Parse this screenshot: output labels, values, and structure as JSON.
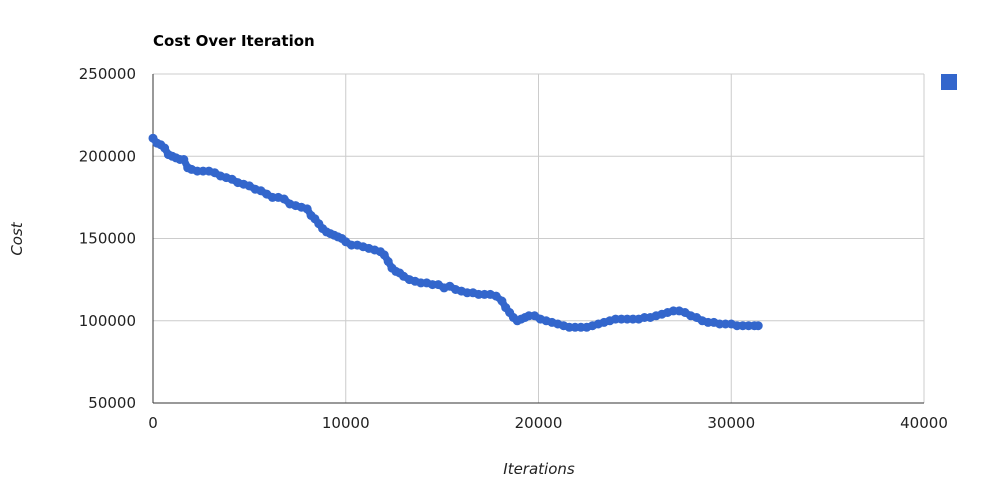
{
  "chart_data": {
    "type": "scatter",
    "title": "Cost Over Iteration",
    "xlabel": "Iterations",
    "ylabel": "Cost",
    "xlim": [
      0,
      40000
    ],
    "ylim": [
      50000,
      250000
    ],
    "x_ticks": [
      "0",
      "10000",
      "20000",
      "30000",
      "40000"
    ],
    "y_ticks": [
      "250000",
      "200000",
      "150000",
      "100000",
      "50000"
    ],
    "grid": true,
    "legend_position": "right",
    "series": [
      {
        "color": "#3366cc",
        "x": [
          0,
          200,
          400,
          600,
          800,
          1000,
          1200,
          1400,
          1600,
          1800,
          2000,
          2300,
          2600,
          2900,
          3200,
          3500,
          3800,
          4100,
          4400,
          4700,
          5000,
          5300,
          5600,
          5900,
          6200,
          6500,
          6800,
          7100,
          7400,
          7700,
          8000,
          8200,
          8400,
          8600,
          8800,
          9000,
          9200,
          9400,
          9600,
          9800,
          10000,
          10300,
          10600,
          10900,
          11200,
          11500,
          11800,
          12000,
          12200,
          12400,
          12600,
          12800,
          13000,
          13300,
          13600,
          13900,
          14200,
          14500,
          14800,
          15100,
          15400,
          15700,
          16000,
          16300,
          16600,
          16900,
          17200,
          17500,
          17800,
          18100,
          18300,
          18500,
          18700,
          18900,
          19100,
          19300,
          19500,
          19800,
          20100,
          20400,
          20700,
          21000,
          21300,
          21600,
          21900,
          22200,
          22500,
          22800,
          23100,
          23400,
          23700,
          24000,
          24300,
          24600,
          24900,
          25200,
          25500,
          25800,
          26100,
          26400,
          26700,
          27000,
          27300,
          27600,
          27900,
          28200,
          28500,
          28800,
          29100,
          29400,
          29700,
          30000,
          30300,
          30600,
          30900,
          31200,
          31400
        ],
        "y": [
          211000,
          208000,
          207000,
          205000,
          201000,
          200000,
          199000,
          198000,
          198000,
          193000,
          192000,
          191000,
          191000,
          191000,
          190000,
          188000,
          187000,
          186000,
          184000,
          183000,
          182000,
          180000,
          179000,
          177000,
          175000,
          175000,
          174000,
          171000,
          170000,
          169000,
          168000,
          164000,
          162000,
          159000,
          156000,
          154000,
          153000,
          152000,
          151000,
          150000,
          148000,
          146000,
          146000,
          145000,
          144000,
          143000,
          142000,
          140000,
          136000,
          132000,
          130000,
          129000,
          127000,
          125000,
          124000,
          123000,
          123000,
          122000,
          122000,
          120000,
          121000,
          119000,
          118000,
          117000,
          117000,
          116000,
          116000,
          116000,
          115000,
          112000,
          108000,
          105000,
          102000,
          100000,
          101000,
          102000,
          103000,
          103000,
          101000,
          100000,
          99000,
          98000,
          97000,
          96000,
          96000,
          96000,
          96000,
          97000,
          98000,
          99000,
          100000,
          101000,
          101000,
          101000,
          101000,
          101000,
          102000,
          102000,
          103000,
          104000,
          105000,
          106000,
          106000,
          105000,
          103000,
          102000,
          100000,
          99000,
          99000,
          98000,
          98000,
          98000,
          97000,
          97000,
          97000,
          97000,
          97000
        ]
      }
    ]
  }
}
